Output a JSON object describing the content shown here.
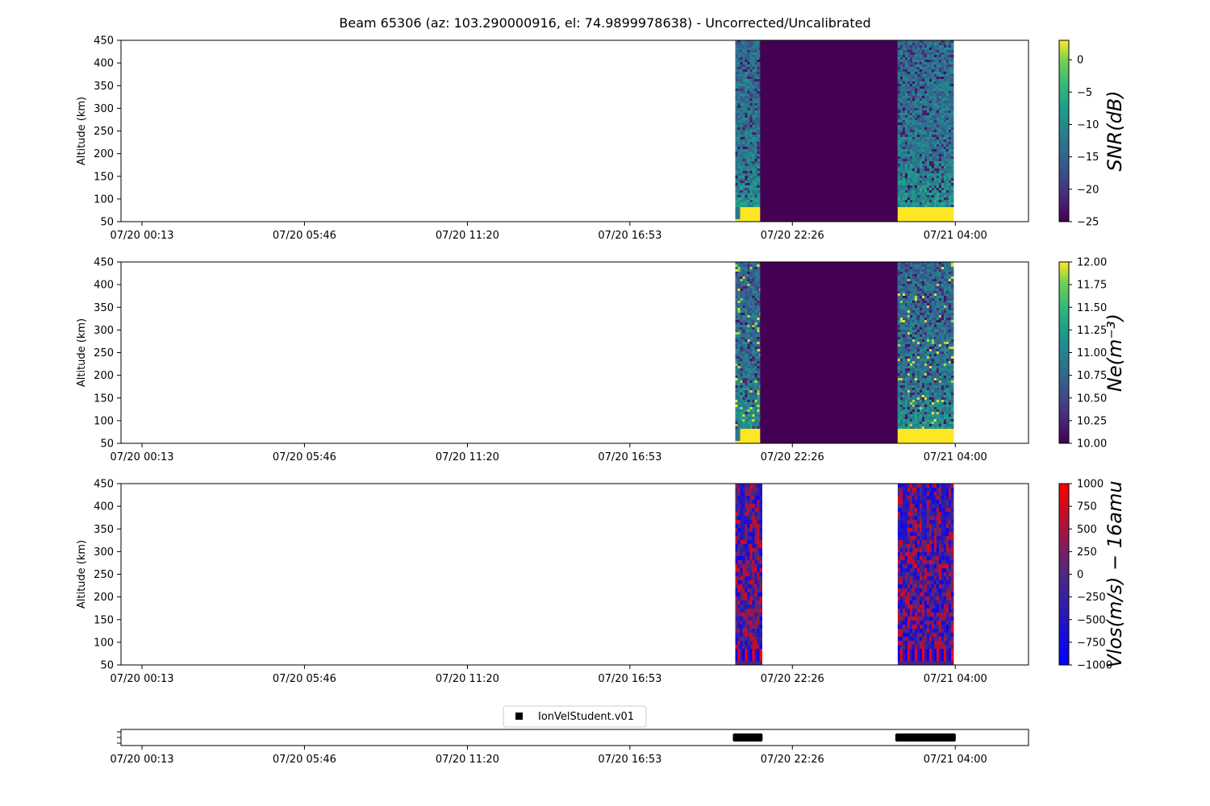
{
  "chart_data": {
    "title": "Beam 65306 (az: 103.290000916, el: 74.9899978638) - Uncorrected/Uncalibrated",
    "x_ticks": [
      "07/20 00:13",
      "07/20 05:46",
      "07/20 11:20",
      "07/20 16:53",
      "07/20 22:26",
      "07/21 04:00"
    ],
    "time_axis": {
      "start": "07/19 23:30",
      "end": "07/21 06:30"
    },
    "data_segments": [
      {
        "start": "07/20 20:29",
        "end": "07/20 21:20",
        "type": "measured"
      },
      {
        "start": "07/20 21:20",
        "end": "07/21 02:02",
        "type": "fill"
      },
      {
        "start": "07/21 02:02",
        "end": "07/21 03:56",
        "type": "measured"
      }
    ],
    "panels": [
      {
        "type": "heatmap",
        "ylabel": "Altitude (km)",
        "ylim": [
          50,
          450
        ],
        "y_ticks": [
          50,
          100,
          150,
          200,
          250,
          300,
          350,
          400,
          450
        ],
        "colormap": "viridis",
        "fill_gap": true,
        "colorbar": {
          "label": "SNR(dB)",
          "range": [
            -25,
            3
          ],
          "ticks": [
            "0",
            "−5",
            "−10",
            "−15",
            "−20",
            "−25"
          ],
          "tick_values": [
            0,
            -5,
            -10,
            -15,
            -20,
            -25
          ]
        }
      },
      {
        "type": "heatmap",
        "ylabel": "Altitude (km)",
        "ylim": [
          50,
          450
        ],
        "y_ticks": [
          50,
          100,
          150,
          200,
          250,
          300,
          350,
          400,
          450
        ],
        "colormap": "viridis",
        "fill_gap": true,
        "colorbar": {
          "label": "Ne(m⁻³)",
          "range": [
            10,
            12
          ],
          "ticks": [
            "12.00",
            "11.75",
            "11.50",
            "11.25",
            "11.00",
            "10.75",
            "10.50",
            "10.25",
            "10.00"
          ],
          "tick_values": [
            12,
            11.75,
            11.5,
            11.25,
            11,
            10.75,
            10.5,
            10.25,
            10
          ]
        }
      },
      {
        "type": "heatmap",
        "ylabel": "Altitude (km)",
        "ylim": [
          50,
          450
        ],
        "y_ticks": [
          50,
          100,
          150,
          200,
          250,
          300,
          350,
          400,
          450
        ],
        "colormap": "bwr",
        "fill_gap": false,
        "colorbar": {
          "label": "Vlos(m/s) − 16amu",
          "range": [
            -1000,
            1000
          ],
          "ticks": [
            "1000",
            "750",
            "500",
            "250",
            "0",
            "−250",
            "−500",
            "−750",
            "−1000"
          ],
          "tick_values": [
            1000,
            750,
            500,
            250,
            0,
            -250,
            -500,
            -750,
            -1000
          ]
        }
      }
    ],
    "availability": {
      "legend": "IonVelStudent.v01",
      "segments": [
        {
          "start": "07/20 20:29",
          "end": "07/20 21:20"
        },
        {
          "start": "07/21 02:02",
          "end": "07/21 03:56"
        }
      ]
    }
  }
}
